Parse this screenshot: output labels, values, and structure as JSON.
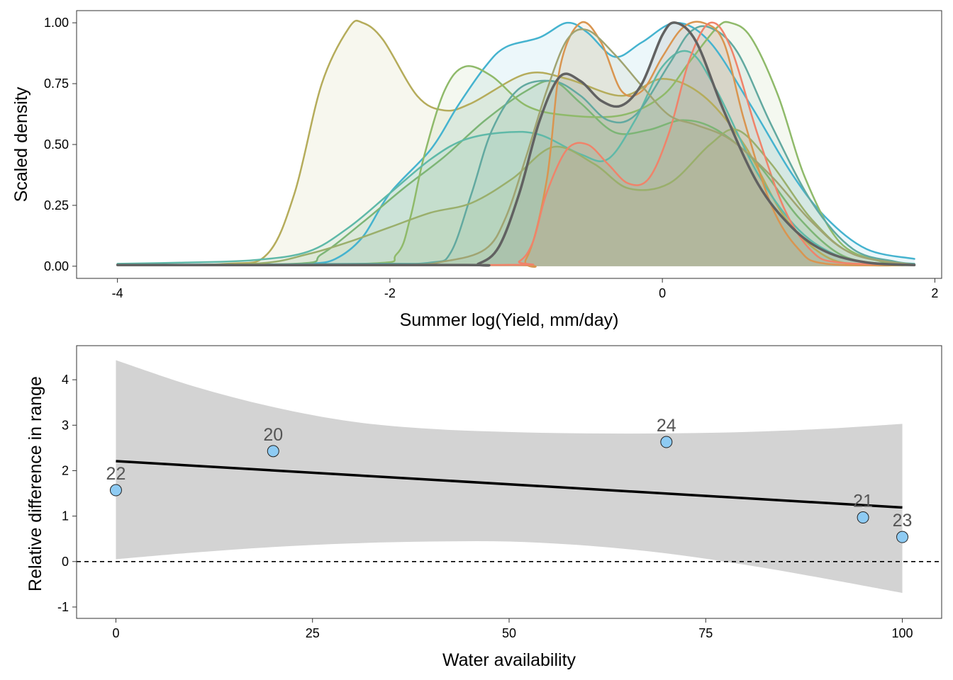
{
  "colors": {
    "panel_border": "#333333",
    "ribbon": "#d3d3d3",
    "trend": "#000000",
    "point_fill": "#8ecbf3",
    "point_stroke": "#222222",
    "label": "#555555",
    "refline": "#000000",
    "density_fill_opacity": 0.1
  },
  "chart_data": [
    {
      "type": "area",
      "subtype": "density",
      "xlabel": "Summer log(Yield, mm/day)",
      "ylabel": "Scaled density",
      "xlim": [
        -4.3,
        2.05
      ],
      "ylim": [
        -0.05,
        1.05
      ],
      "xticks": [
        -4,
        -2,
        0,
        2
      ],
      "xtick_labels": [
        "-4",
        "-2",
        "0",
        "2"
      ],
      "yticks": [
        0,
        0.25,
        0.5,
        0.75,
        1
      ],
      "ytick_labels": [
        "0.00",
        "0.25",
        "0.50",
        "0.75",
        "1.00"
      ],
      "grid": false,
      "legend": "none",
      "series": [
        {
          "color": "#b5ac5b",
          "stroke_width": 2.5,
          "points": [
            [
              -4,
              0.005
            ],
            [
              -3.2,
              0.01
            ],
            [
              -2.9,
              0.05
            ],
            [
              -2.7,
              0.3
            ],
            [
              -2.5,
              0.75
            ],
            [
              -2.3,
              0.98
            ],
            [
              -2.2,
              1.0
            ],
            [
              -2.05,
              0.93
            ],
            [
              -1.8,
              0.7
            ],
            [
              -1.6,
              0.64
            ],
            [
              -1.4,
              0.67
            ],
            [
              -1.0,
              0.79
            ],
            [
              -0.7,
              0.77
            ],
            [
              -0.3,
              0.7
            ],
            [
              0,
              0.77
            ],
            [
              0.3,
              0.7
            ],
            [
              0.6,
              0.5
            ],
            [
              0.9,
              0.2
            ],
            [
              1.2,
              0.04
            ],
            [
              1.5,
              0.005
            ],
            [
              1.85,
              0.005
            ]
          ]
        },
        {
          "color": "#45b3cf",
          "stroke_width": 2.5,
          "points": [
            [
              -4,
              0.005
            ],
            [
              -3,
              0.005
            ],
            [
              -2.6,
              0.01
            ],
            [
              -2.4,
              0.03
            ],
            [
              -2.2,
              0.12
            ],
            [
              -2.0,
              0.3
            ],
            [
              -1.7,
              0.48
            ],
            [
              -1.5,
              0.66
            ],
            [
              -1.3,
              0.82
            ],
            [
              -1.15,
              0.9
            ],
            [
              -0.9,
              0.94
            ],
            [
              -0.7,
              1.0
            ],
            [
              -0.55,
              0.96
            ],
            [
              -0.35,
              0.86
            ],
            [
              -0.15,
              0.92
            ],
            [
              0.1,
              1.0
            ],
            [
              0.35,
              0.92
            ],
            [
              0.65,
              0.66
            ],
            [
              0.95,
              0.38
            ],
            [
              1.2,
              0.2
            ],
            [
              1.5,
              0.07
            ],
            [
              1.85,
              0.03
            ]
          ]
        },
        {
          "color": "#7db576",
          "stroke_width": 2.5,
          "points": [
            [
              -4,
              0.005
            ],
            [
              -2.7,
              0.01
            ],
            [
              -2.5,
              0.05
            ],
            [
              -2.2,
              0.18
            ],
            [
              -1.9,
              0.32
            ],
            [
              -1.6,
              0.45
            ],
            [
              -1.3,
              0.6
            ],
            [
              -1.0,
              0.72
            ],
            [
              -0.8,
              0.76
            ],
            [
              -0.6,
              0.67
            ],
            [
              -0.35,
              0.55
            ],
            [
              -0.1,
              0.56
            ],
            [
              0.15,
              0.6
            ],
            [
              0.4,
              0.56
            ],
            [
              0.7,
              0.42
            ],
            [
              1.0,
              0.2
            ],
            [
              1.3,
              0.05
            ],
            [
              1.6,
              0.01
            ],
            [
              1.85,
              0.005
            ]
          ]
        },
        {
          "color": "#8fba6a",
          "stroke_width": 2.5,
          "points": [
            [
              -4,
              0.005
            ],
            [
              -2.2,
              0.01
            ],
            [
              -1.95,
              0.05
            ],
            [
              -1.85,
              0.2
            ],
            [
              -1.75,
              0.45
            ],
            [
              -1.6,
              0.72
            ],
            [
              -1.45,
              0.82
            ],
            [
              -1.25,
              0.78
            ],
            [
              -1.0,
              0.66
            ],
            [
              -0.7,
              0.62
            ],
            [
              -0.3,
              0.62
            ],
            [
              0.0,
              0.7
            ],
            [
              0.2,
              0.84
            ],
            [
              0.4,
              0.98
            ],
            [
              0.5,
              1.0
            ],
            [
              0.65,
              0.94
            ],
            [
              0.85,
              0.7
            ],
            [
              1.05,
              0.36
            ],
            [
              1.3,
              0.1
            ],
            [
              1.6,
              0.02
            ],
            [
              1.85,
              0.005
            ]
          ]
        },
        {
          "color": "#5fb9a8",
          "stroke_width": 2.5,
          "points": [
            [
              -4,
              0.01
            ],
            [
              -3.5,
              0.015
            ],
            [
              -3.0,
              0.025
            ],
            [
              -2.6,
              0.06
            ],
            [
              -2.3,
              0.16
            ],
            [
              -2.0,
              0.3
            ],
            [
              -1.7,
              0.44
            ],
            [
              -1.45,
              0.52
            ],
            [
              -1.15,
              0.55
            ],
            [
              -0.9,
              0.54
            ],
            [
              -0.6,
              0.46
            ],
            [
              -0.4,
              0.44
            ],
            [
              -0.2,
              0.6
            ],
            [
              0,
              0.82
            ],
            [
              0.2,
              0.88
            ],
            [
              0.4,
              0.72
            ],
            [
              0.7,
              0.38
            ],
            [
              1.0,
              0.15
            ],
            [
              1.3,
              0.04
            ],
            [
              1.6,
              0.01
            ],
            [
              1.85,
              0.005
            ]
          ]
        },
        {
          "color": "#62a9a0",
          "stroke_width": 2.5,
          "points": [
            [
              -4,
              0.005
            ],
            [
              -2.2,
              0.01
            ],
            [
              -1.7,
              0.015
            ],
            [
              -1.55,
              0.06
            ],
            [
              -1.4,
              0.3
            ],
            [
              -1.25,
              0.56
            ],
            [
              -1.05,
              0.73
            ],
            [
              -0.8,
              0.76
            ],
            [
              -0.6,
              0.7
            ],
            [
              -0.4,
              0.6
            ],
            [
              -0.2,
              0.62
            ],
            [
              0.05,
              0.83
            ],
            [
              0.2,
              0.96
            ],
            [
              0.35,
              0.98
            ],
            [
              0.55,
              0.88
            ],
            [
              0.8,
              0.58
            ],
            [
              1.1,
              0.26
            ],
            [
              1.4,
              0.07
            ],
            [
              1.7,
              0.02
            ],
            [
              1.85,
              0.01
            ]
          ]
        },
        {
          "color": "#9aaf6c",
          "stroke_width": 2.5,
          "points": [
            [
              -4,
              0.005
            ],
            [
              -3.0,
              0.01
            ],
            [
              -2.6,
              0.05
            ],
            [
              -2.3,
              0.1
            ],
            [
              -2.0,
              0.16
            ],
            [
              -1.7,
              0.22
            ],
            [
              -1.4,
              0.26
            ],
            [
              -1.1,
              0.36
            ],
            [
              -0.8,
              0.49
            ],
            [
              -0.5,
              0.42
            ],
            [
              -0.25,
              0.32
            ],
            [
              0.05,
              0.34
            ],
            [
              0.35,
              0.5
            ],
            [
              0.55,
              0.56
            ],
            [
              0.8,
              0.42
            ],
            [
              1.1,
              0.19
            ],
            [
              1.4,
              0.05
            ],
            [
              1.85,
              0.005
            ]
          ]
        },
        {
          "color": "#d99550",
          "stroke_width": 2.5,
          "points": [
            [
              -4,
              0.005
            ],
            [
              -1.2,
              0.005
            ],
            [
              -1.0,
              0.03
            ],
            [
              -0.85,
              0.35
            ],
            [
              -0.75,
              0.82
            ],
            [
              -0.6,
              1.0
            ],
            [
              -0.45,
              0.92
            ],
            [
              -0.3,
              0.72
            ],
            [
              -0.15,
              0.72
            ],
            [
              0.0,
              0.86
            ],
            [
              0.15,
              0.98
            ],
            [
              0.3,
              1.0
            ],
            [
              0.45,
              0.92
            ],
            [
              0.6,
              0.6
            ],
            [
              0.8,
              0.25
            ],
            [
              1.0,
              0.07
            ],
            [
              1.2,
              0.01
            ],
            [
              1.85,
              0.005
            ]
          ]
        },
        {
          "color": "#f0836a",
          "stroke_width": 2.5,
          "points": [
            [
              -4,
              0.005
            ],
            [
              -1.2,
              0.005
            ],
            [
              -1.05,
              0.02
            ],
            [
              -0.95,
              0.1
            ],
            [
              -0.85,
              0.3
            ],
            [
              -0.7,
              0.48
            ],
            [
              -0.55,
              0.5
            ],
            [
              -0.4,
              0.42
            ],
            [
              -0.25,
              0.34
            ],
            [
              -0.1,
              0.36
            ],
            [
              0.05,
              0.55
            ],
            [
              0.2,
              0.85
            ],
            [
              0.35,
              1.0
            ],
            [
              0.5,
              0.9
            ],
            [
              0.7,
              0.54
            ],
            [
              0.9,
              0.23
            ],
            [
              1.1,
              0.06
            ],
            [
              1.3,
              0.015
            ],
            [
              1.85,
              0.005
            ]
          ]
        },
        {
          "color": "#a0a472",
          "stroke_width": 2.5,
          "points": [
            [
              -4,
              0.005
            ],
            [
              -2.0,
              0.005
            ],
            [
              -1.6,
              0.02
            ],
            [
              -1.3,
              0.07
            ],
            [
              -1.15,
              0.2
            ],
            [
              -1.0,
              0.45
            ],
            [
              -0.85,
              0.72
            ],
            [
              -0.7,
              0.93
            ],
            [
              -0.55,
              0.97
            ],
            [
              -0.35,
              0.87
            ],
            [
              -0.15,
              0.74
            ],
            [
              0.05,
              0.62
            ],
            [
              0.25,
              0.58
            ],
            [
              0.5,
              0.52
            ],
            [
              0.8,
              0.37
            ],
            [
              1.1,
              0.18
            ],
            [
              1.4,
              0.05
            ],
            [
              1.85,
              0.005
            ]
          ]
        },
        {
          "color": "#616161",
          "stroke_width": 3.5,
          "points": [
            [
              -4,
              0.005
            ],
            [
              -1.5,
              0.005
            ],
            [
              -1.35,
              0.01
            ],
            [
              -1.2,
              0.08
            ],
            [
              -1.05,
              0.3
            ],
            [
              -0.9,
              0.6
            ],
            [
              -0.75,
              0.78
            ],
            [
              -0.6,
              0.76
            ],
            [
              -0.45,
              0.68
            ],
            [
              -0.3,
              0.66
            ],
            [
              -0.15,
              0.75
            ],
            [
              0.0,
              0.95
            ],
            [
              0.1,
              1.0
            ],
            [
              0.25,
              0.92
            ],
            [
              0.45,
              0.64
            ],
            [
              0.7,
              0.34
            ],
            [
              0.95,
              0.16
            ],
            [
              1.2,
              0.06
            ],
            [
              1.5,
              0.015
            ],
            [
              1.85,
              0.005
            ]
          ]
        }
      ]
    },
    {
      "type": "scatter",
      "xlabel": "Water availability",
      "ylabel": "Relative difference in range",
      "xlim": [
        -5,
        105
      ],
      "ylim": [
        -1.25,
        4.75
      ],
      "xticks": [
        0,
        25,
        50,
        75,
        100
      ],
      "xtick_labels": [
        "0",
        "25",
        "50",
        "75",
        "100"
      ],
      "yticks": [
        -1,
        0,
        1,
        2,
        3,
        4
      ],
      "ytick_labels": [
        "-1",
        "0",
        "1",
        "2",
        "3",
        "4"
      ],
      "grid": false,
      "legend": "none",
      "reference_line": {
        "y": 0,
        "style": "dashed"
      },
      "points": [
        {
          "x": 0,
          "y": 1.57,
          "label": "22"
        },
        {
          "x": 20,
          "y": 2.43,
          "label": "20"
        },
        {
          "x": 70,
          "y": 2.63,
          "label": "24"
        },
        {
          "x": 95,
          "y": 0.97,
          "label": "21"
        },
        {
          "x": 100,
          "y": 0.54,
          "label": "23"
        }
      ],
      "trend_line": {
        "x": [
          0,
          100
        ],
        "y": [
          2.21,
          1.19
        ]
      },
      "confidence_band": {
        "x": [
          0,
          10,
          20,
          30,
          40,
          50,
          60,
          70,
          80,
          90,
          100
        ],
        "upper": [
          4.43,
          3.85,
          3.4,
          3.08,
          2.92,
          2.85,
          2.82,
          2.82,
          2.85,
          2.92,
          3.03
        ],
        "lower": [
          0.05,
          0.2,
          0.32,
          0.4,
          0.44,
          0.44,
          0.35,
          0.18,
          -0.07,
          -0.37,
          -0.69
        ]
      }
    }
  ]
}
